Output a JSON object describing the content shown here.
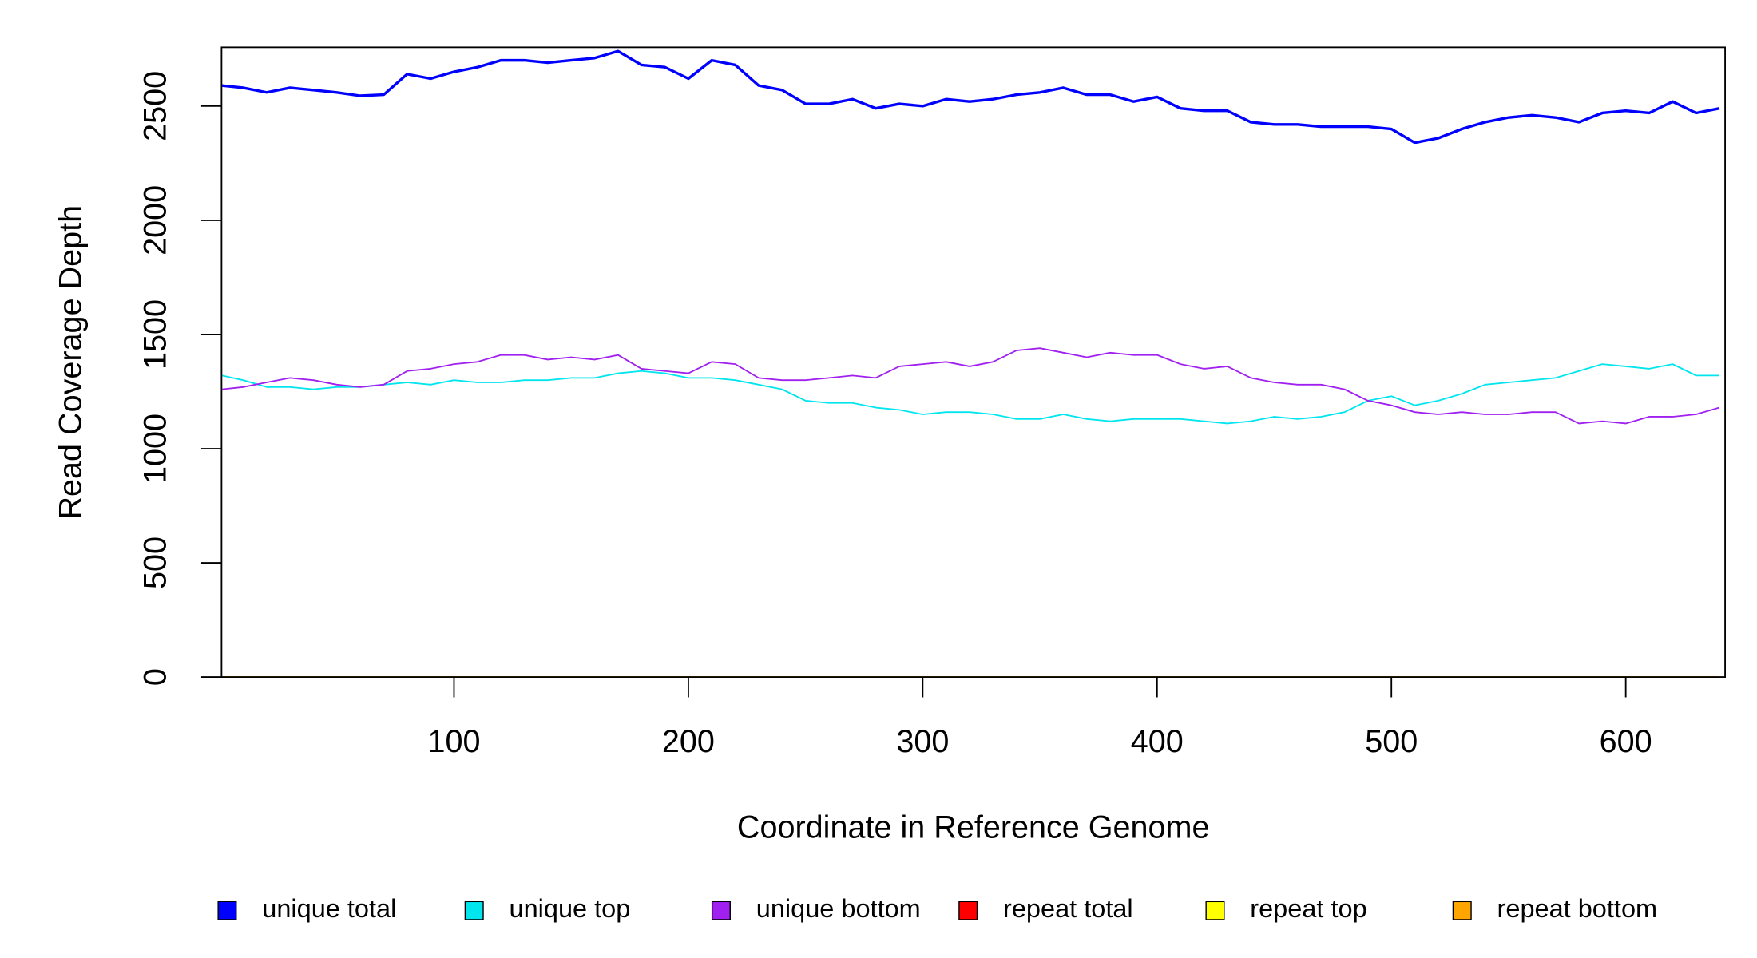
{
  "chart_data": {
    "type": "line",
    "xlabel": "Coordinate in Reference Genome",
    "ylabel": "Read Coverage Depth",
    "x": [
      1,
      10,
      20,
      30,
      40,
      50,
      60,
      70,
      80,
      90,
      100,
      110,
      120,
      130,
      140,
      150,
      160,
      170,
      180,
      190,
      200,
      210,
      220,
      230,
      240,
      250,
      260,
      270,
      280,
      290,
      300,
      310,
      320,
      330,
      340,
      350,
      360,
      370,
      380,
      390,
      400,
      410,
      420,
      430,
      440,
      450,
      460,
      470,
      480,
      490,
      500,
      510,
      520,
      530,
      540,
      550,
      560,
      570,
      580,
      590,
      600,
      610,
      620,
      630,
      640
    ],
    "series": [
      {
        "name": "unique total",
        "color": "#0000ff",
        "values": [
          2590,
          2580,
          2560,
          2580,
          2570,
          2560,
          2545,
          2550,
          2640,
          2620,
          2650,
          2670,
          2700,
          2700,
          2690,
          2700,
          2710,
          2740,
          2680,
          2670,
          2620,
          2700,
          2680,
          2590,
          2570,
          2510,
          2510,
          2530,
          2490,
          2510,
          2500,
          2530,
          2520,
          2530,
          2550,
          2560,
          2580,
          2550,
          2550,
          2520,
          2540,
          2490,
          2480,
          2480,
          2430,
          2420,
          2420,
          2410,
          2410,
          2410,
          2400,
          2340,
          2360,
          2400,
          2430,
          2450,
          2460,
          2450,
          2430,
          2470,
          2480,
          2470,
          2520,
          2470,
          2490
        ]
      },
      {
        "name": "unique top",
        "color": "#00e5ee",
        "values": [
          1320,
          1300,
          1270,
          1270,
          1260,
          1270,
          1270,
          1280,
          1290,
          1280,
          1300,
          1290,
          1290,
          1300,
          1300,
          1310,
          1310,
          1330,
          1340,
          1330,
          1310,
          1310,
          1300,
          1280,
          1260,
          1210,
          1200,
          1200,
          1180,
          1170,
          1150,
          1160,
          1160,
          1150,
          1130,
          1130,
          1150,
          1130,
          1120,
          1130,
          1130,
          1130,
          1120,
          1110,
          1120,
          1140,
          1130,
          1140,
          1160,
          1210,
          1230,
          1190,
          1210,
          1240,
          1280,
          1290,
          1300,
          1310,
          1340,
          1370,
          1360,
          1350,
          1370,
          1320,
          1320
        ]
      },
      {
        "name": "unique bottom",
        "color": "#a020f0",
        "values": [
          1260,
          1270,
          1290,
          1310,
          1300,
          1280,
          1270,
          1280,
          1340,
          1350,
          1370,
          1380,
          1410,
          1410,
          1390,
          1400,
          1390,
          1410,
          1350,
          1340,
          1330,
          1380,
          1370,
          1310,
          1300,
          1300,
          1310,
          1320,
          1310,
          1360,
          1370,
          1380,
          1360,
          1380,
          1430,
          1440,
          1420,
          1400,
          1420,
          1410,
          1410,
          1370,
          1350,
          1360,
          1310,
          1290,
          1280,
          1280,
          1260,
          1210,
          1190,
          1160,
          1150,
          1160,
          1150,
          1150,
          1160,
          1160,
          1110,
          1120,
          1110,
          1140,
          1140,
          1150,
          1180
        ]
      },
      {
        "name": "repeat total",
        "color": "#ff0000",
        "values": [
          0,
          0,
          0,
          0,
          0,
          0,
          0,
          0,
          0,
          0,
          0,
          0,
          0,
          0,
          0,
          0,
          0,
          0,
          0,
          0,
          0,
          0,
          0,
          0,
          0,
          0,
          0,
          0,
          0,
          0,
          0,
          0,
          0,
          0,
          0,
          0,
          0,
          0,
          0,
          0,
          0,
          0,
          0,
          0,
          0,
          0,
          0,
          0,
          0,
          0,
          0,
          0,
          0,
          0,
          0,
          0,
          0,
          0,
          0,
          0,
          0,
          0,
          0,
          0,
          0
        ]
      },
      {
        "name": "repeat top",
        "color": "#ffff00",
        "values": [
          0,
          0,
          0,
          0,
          0,
          0,
          0,
          0,
          0,
          0,
          0,
          0,
          0,
          0,
          0,
          0,
          0,
          0,
          0,
          0,
          0,
          0,
          0,
          0,
          0,
          0,
          0,
          0,
          0,
          0,
          0,
          0,
          0,
          0,
          0,
          0,
          0,
          0,
          0,
          0,
          0,
          0,
          0,
          0,
          0,
          0,
          0,
          0,
          0,
          0,
          0,
          0,
          0,
          0,
          0,
          0,
          0,
          0,
          0,
          0,
          0,
          0,
          0,
          0,
          0
        ]
      },
      {
        "name": "repeat bottom",
        "color": "#ffa500",
        "values": [
          0,
          0,
          0,
          0,
          0,
          0,
          0,
          0,
          0,
          0,
          0,
          0,
          0,
          0,
          0,
          0,
          0,
          0,
          0,
          0,
          0,
          0,
          0,
          0,
          0,
          0,
          0,
          0,
          0,
          0,
          0,
          0,
          0,
          0,
          0,
          0,
          0,
          0,
          0,
          0,
          0,
          0,
          0,
          0,
          0,
          0,
          0,
          0,
          0,
          0,
          0,
          0,
          0,
          0,
          0,
          0,
          0,
          0,
          0,
          0,
          0,
          0,
          0,
          0,
          0
        ]
      }
    ],
    "xlim": [
      0.8,
      642.4
    ],
    "xticks": [
      100,
      200,
      300,
      400,
      500,
      600
    ],
    "ylim": [
      0,
      2757
    ],
    "yticks": [
      0,
      500,
      1000,
      1500,
      2000,
      2500
    ],
    "legend": "bottom"
  }
}
